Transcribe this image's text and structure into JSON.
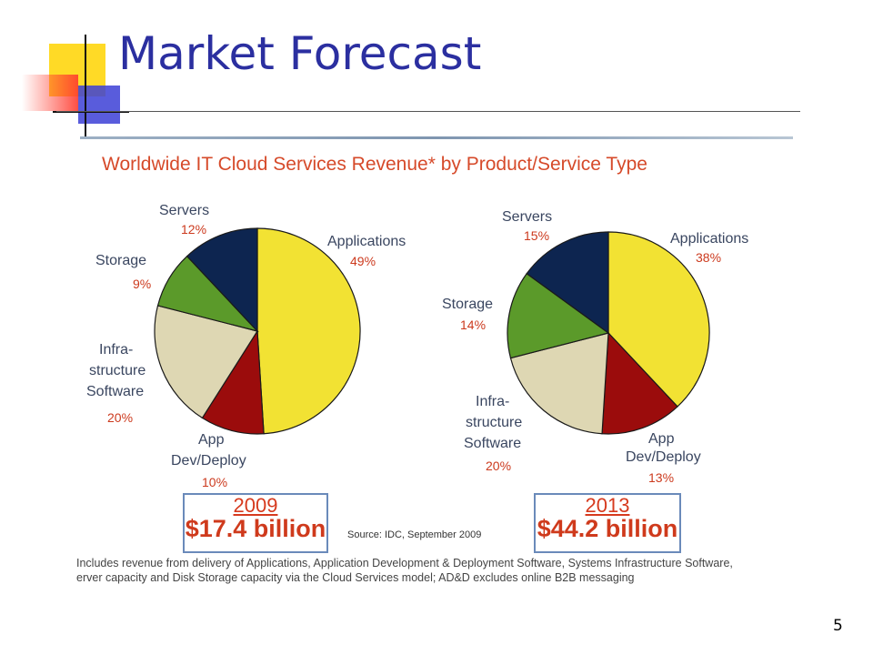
{
  "slide": {
    "title": "Market Forecast",
    "number": "5"
  },
  "figure": {
    "subtitle": "Worldwide IT Cloud Services Revenue* by Product/Service Type",
    "source": "Source: IDC, September 2009",
    "footnote_line1": "Includes revenue from delivery of Applications, Application Development & Deployment Software, Systems Infrastructure Software,",
    "footnote_line2": "erver capacity and Disk Storage capacity via the Cloud Services model; AD&D excludes online B2B messaging"
  },
  "colors": {
    "title": "#2b2fa0",
    "accent_red": "#cc3a1e",
    "applications": "#f2e233",
    "app_dev": "#9b0c0c",
    "infrastructure": "#ded7b3",
    "storage": "#5b9a2a",
    "servers": "#0d2550"
  },
  "chart_data": [
    {
      "type": "pie",
      "year": "2009",
      "total": "$17.4 billion",
      "slices": [
        {
          "label": "Applications",
          "value": 49,
          "pct": "49%",
          "color": "#f2e233"
        },
        {
          "label": "App Dev/Deploy",
          "value": 10,
          "pct": "10%",
          "color": "#9b0c0c"
        },
        {
          "label": "Infra-structure Software",
          "value": 20,
          "pct": "20%",
          "color": "#ded7b3"
        },
        {
          "label": "Storage",
          "value": 9,
          "pct": "9%",
          "color": "#5b9a2a"
        },
        {
          "label": "Servers",
          "value": 12,
          "pct": "12%",
          "color": "#0d2550"
        }
      ]
    },
    {
      "type": "pie",
      "year": "2013",
      "total": "$44.2 billion",
      "slices": [
        {
          "label": "Applications",
          "value": 38,
          "pct": "38%",
          "color": "#f2e233"
        },
        {
          "label": "App Dev/Deploy",
          "value": 13,
          "pct": "13%",
          "color": "#9b0c0c"
        },
        {
          "label": "Infra-structure Software",
          "value": 20,
          "pct": "20%",
          "color": "#ded7b3"
        },
        {
          "label": "Storage",
          "value": 14,
          "pct": "14%",
          "color": "#5b9a2a"
        },
        {
          "label": "Servers",
          "value": 15,
          "pct": "15%",
          "color": "#0d2550"
        }
      ]
    }
  ],
  "labels_left": {
    "servers": "Servers",
    "servers_pct": "12%",
    "applications": "Applications",
    "applications_pct": "49%",
    "storage": "Storage",
    "storage_pct": "9%",
    "infra1": "Infra-",
    "infra2": "structure",
    "infra3": "Software",
    "infra_pct": "20%",
    "app1": "App",
    "app2": "Dev/Deploy",
    "app_pct": "10%"
  },
  "labels_right": {
    "servers": "Servers",
    "servers_pct": "15%",
    "applications": "Applications",
    "applications_pct": "38%",
    "storage": "Storage",
    "storage_pct": "14%",
    "infra1": "Infra-",
    "infra2": "structure",
    "infra3": "Software",
    "infra_pct": "20%",
    "app1": "App",
    "app2": "Dev/Deploy",
    "app_pct": "13%"
  }
}
